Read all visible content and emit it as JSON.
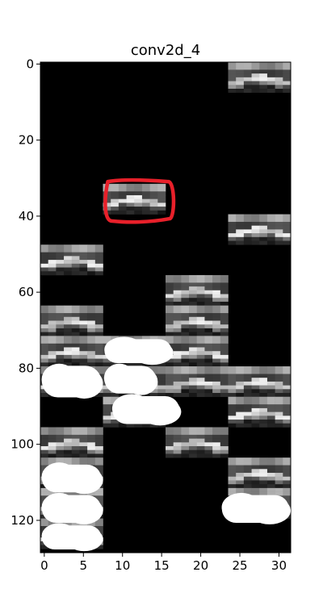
{
  "chart_data": {
    "type": "heatmap",
    "title": "conv2d_4",
    "xlabel": "",
    "ylabel": "",
    "xlim": [
      -0.5,
      31.5
    ],
    "ylim": [
      128.5,
      -0.5
    ],
    "x_ticks": [
      0,
      5,
      10,
      15,
      20,
      25,
      30
    ],
    "x_tick_labels": [
      "0",
      "5",
      "10",
      "15",
      "20",
      "25",
      "30"
    ],
    "y_ticks": [
      0,
      20,
      40,
      60,
      80,
      100,
      120
    ],
    "y_tick_labels": [
      "0",
      "20",
      "40",
      "60",
      "80",
      "100",
      "120"
    ],
    "colormap": "gray",
    "background": "#000000",
    "grid": false,
    "legend": "none",
    "tile_size": 8,
    "tiles": [
      {
        "col": 3,
        "row": 0
      },
      {
        "col": 1,
        "row": 4
      },
      {
        "col": 3,
        "row": 5
      },
      {
        "col": 0,
        "row": 6
      },
      {
        "col": 2,
        "row": 7
      },
      {
        "col": 0,
        "row": 8
      },
      {
        "col": 2,
        "row": 8
      },
      {
        "col": 0,
        "row": 9
      },
      {
        "col": 1,
        "row": 9
      },
      {
        "col": 2,
        "row": 9
      },
      {
        "col": 0,
        "row": 10
      },
      {
        "col": 1,
        "row": 10
      },
      {
        "col": 2,
        "row": 10
      },
      {
        "col": 3,
        "row": 10
      },
      {
        "col": 1,
        "row": 11
      },
      {
        "col": 3,
        "row": 11
      },
      {
        "col": 0,
        "row": 12
      },
      {
        "col": 2,
        "row": 12
      },
      {
        "col": 0,
        "row": 13
      },
      {
        "col": 3,
        "row": 13
      },
      {
        "col": 0,
        "row": 14
      },
      {
        "col": 3,
        "row": 14
      },
      {
        "col": 0,
        "row": 15
      }
    ],
    "annotations": [
      {
        "type": "hand-drawn-outline",
        "color": "#e8202a",
        "around": {
          "x": [
            8,
            16
          ],
          "y": [
            31,
            41
          ]
        }
      },
      {
        "type": "white-scribble",
        "color": "#ffffff",
        "around": {
          "x": [
            8,
            16
          ],
          "y": [
            72,
            79
          ]
        }
      },
      {
        "type": "white-scribble",
        "color": "#ffffff",
        "around": {
          "x": [
            0,
            7
          ],
          "y": [
            79,
            88
          ]
        }
      },
      {
        "type": "white-scribble",
        "color": "#ffffff",
        "around": {
          "x": [
            8,
            14
          ],
          "y": [
            79,
            87
          ]
        }
      },
      {
        "type": "white-scribble",
        "color": "#ffffff",
        "around": {
          "x": [
            9,
            17
          ],
          "y": [
            87,
            95
          ]
        }
      },
      {
        "type": "white-scribble",
        "color": "#ffffff",
        "around": {
          "x": [
            0,
            7
          ],
          "y": [
            105,
            113
          ]
        }
      },
      {
        "type": "white-scribble",
        "color": "#ffffff",
        "around": {
          "x": [
            0,
            7
          ],
          "y": [
            113,
            121
          ]
        }
      },
      {
        "type": "white-scribble",
        "color": "#ffffff",
        "around": {
          "x": [
            0,
            7
          ],
          "y": [
            121,
            128
          ]
        }
      },
      {
        "type": "white-scribble",
        "color": "#ffffff",
        "around": {
          "x": [
            23,
            31
          ],
          "y": [
            113,
            121
          ]
        }
      }
    ]
  }
}
